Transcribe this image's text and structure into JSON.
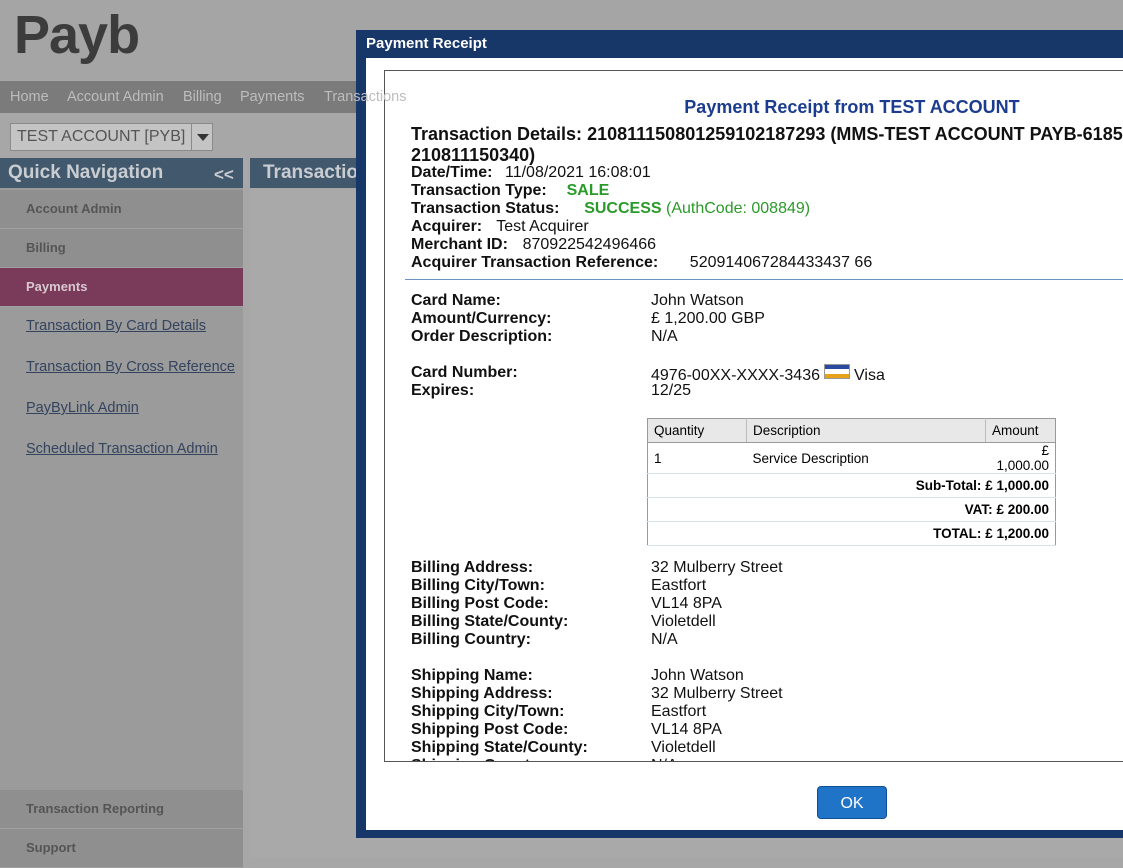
{
  "app": {
    "logo": "Payb",
    "nav": [
      "Home",
      "Account Admin",
      "Billing",
      "Payments",
      "Transactions"
    ],
    "account_select": "TEST ACCOUNT [PYB]",
    "sidebar": {
      "title": "Quick Navigation",
      "collapse": "<<",
      "sections": [
        "Account Admin",
        "Billing",
        "Payments"
      ],
      "links": [
        "Transaction By Card Details",
        "Transaction By Cross Reference",
        "PayByLink Admin",
        "Scheduled Transaction Admin"
      ],
      "bottom_sections": [
        "Transaction Reporting",
        "Support"
      ]
    },
    "content_title": "Transactions"
  },
  "dialog": {
    "title": "Payment Receipt",
    "heading": "Payment Receipt from TEST ACCOUNT",
    "transaction_details": {
      "label": "Transaction Details:",
      "value": [
        "210811150801259102187293 (MMS-TEST ACCOUNT PAYB-6185",
        "210811150340)"
      ]
    },
    "details": [
      {
        "label": "Date/Time:",
        "value": "11/08/2021 16:08:01"
      },
      {
        "label": "Transaction Type:",
        "value": "SALE"
      },
      {
        "label": "Transaction Status:",
        "value": "SUCCESS",
        "note": "(AuthCode: 008849)"
      },
      {
        "label": "Acquirer:",
        "value": "Test Acquirer"
      },
      {
        "label": "Merchant ID:",
        "value": "870922542496466"
      },
      {
        "label": "Acquirer Transaction Reference:",
        "value": "520914067284433437 66"
      }
    ],
    "card": [
      {
        "label": "Card Name:",
        "value": "John Watson"
      },
      {
        "label": "Amount/Currency:",
        "value": "£ 1,200.00 GBP"
      },
      {
        "label": "Order Description:",
        "value": "N/A"
      }
    ],
    "card_number": {
      "label": "Card Number:",
      "value": "4976-00XX-XXXX-3436",
      "brand": "Visa"
    },
    "expires": {
      "label": "Expires:",
      "value": "12/25"
    },
    "items_table": {
      "headers": [
        "Quantity",
        "Description",
        "Amount"
      ],
      "rows": [
        [
          "1",
          "Service Description",
          "£ 1,000.00"
        ]
      ],
      "totals": [
        {
          "label": "Sub-Total:",
          "value": "£ 1,000.00"
        },
        {
          "label": "VAT:",
          "value": "£ 200.00"
        },
        {
          "label": "TOTAL:",
          "value": "£ 1,200.00"
        }
      ]
    },
    "billing": [
      {
        "label": "Billing Address:",
        "value": "32 Mulberry Street"
      },
      {
        "label": "Billing City/Town:",
        "value": "Eastfort"
      },
      {
        "label": "Billing Post Code:",
        "value": "VL14 8PA"
      },
      {
        "label": "Billing State/County:",
        "value": "Violetdell"
      },
      {
        "label": "Billing Country:",
        "value": "N/A"
      }
    ],
    "shipping": [
      {
        "label": "Shipping Name:",
        "value": "John Watson"
      },
      {
        "label": "Shipping Address:",
        "value": "32 Mulberry Street"
      },
      {
        "label": "Shipping City/Town:",
        "value": "Eastfort"
      },
      {
        "label": "Shipping Post Code:",
        "value": "VL14 8PA"
      },
      {
        "label": "Shipping State/County:",
        "value": "Violetdell"
      },
      {
        "label": "Shipping Country:",
        "value": "N/A"
      }
    ],
    "ok_button": "OK"
  }
}
